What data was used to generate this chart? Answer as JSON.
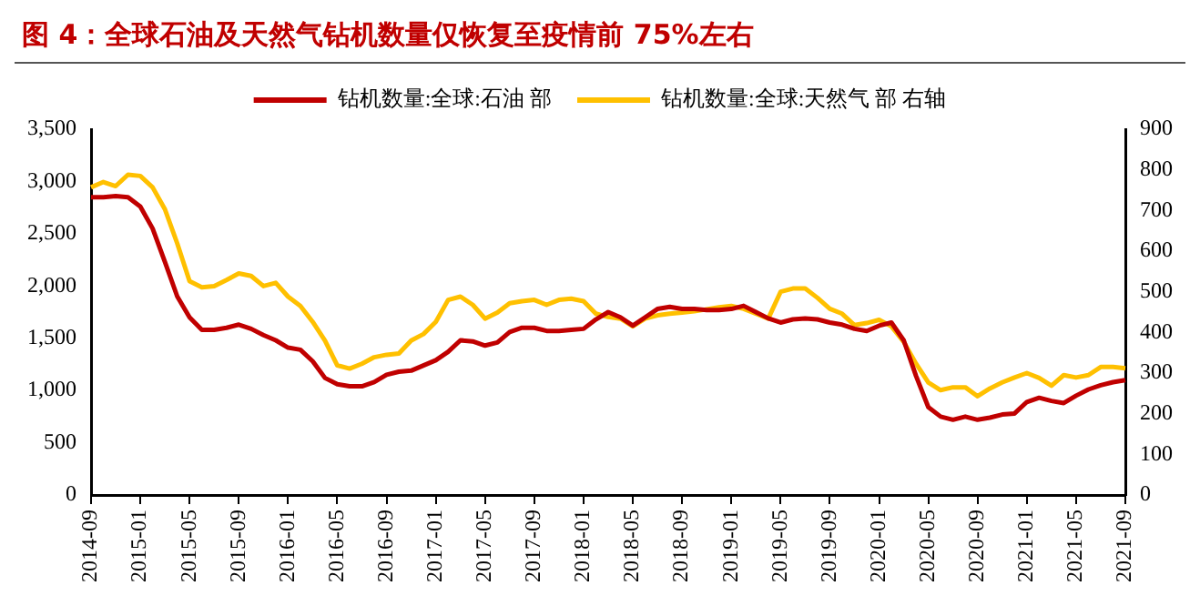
{
  "chart_data": {
    "type": "line",
    "title": "图 4：全球石油及天然气钻机数量仅恢复至疫情前 75%左右",
    "categories": [
      "2014-09",
      null,
      null,
      null,
      "2015-01",
      null,
      null,
      null,
      "2015-05",
      null,
      null,
      null,
      "2015-09",
      null,
      null,
      null,
      "2016-01",
      null,
      null,
      null,
      "2016-05",
      null,
      null,
      null,
      "2016-09",
      null,
      null,
      null,
      "2017-01",
      null,
      null,
      null,
      "2017-05",
      null,
      null,
      null,
      "2017-09",
      null,
      null,
      null,
      "2018-01",
      null,
      null,
      null,
      "2018-05",
      null,
      null,
      null,
      "2018-09",
      null,
      null,
      null,
      "2019-01",
      null,
      null,
      null,
      "2019-05",
      null,
      null,
      null,
      "2019-09",
      null,
      null,
      null,
      "2020-01",
      null,
      null,
      null,
      "2020-05",
      null,
      null,
      null,
      "2020-09",
      null,
      null,
      null,
      "2021-01",
      null,
      null,
      null,
      "2021-05",
      null,
      null,
      null,
      "2021-09"
    ],
    "series": [
      {
        "name": "钻机数量:全球:石油 部",
        "color": "#c00000",
        "values": [
          2850,
          2850,
          2860,
          2850,
          2760,
          2550,
          2230,
          1900,
          1700,
          1580,
          1580,
          1600,
          1630,
          1590,
          1530,
          1480,
          1410,
          1390,
          1280,
          1120,
          1060,
          1040,
          1040,
          1080,
          1150,
          1180,
          1190,
          1240,
          1290,
          1370,
          1480,
          1470,
          1430,
          1460,
          1560,
          1600,
          1600,
          1570,
          1570,
          1580,
          1590,
          1680,
          1750,
          1700,
          1620,
          1700,
          1780,
          1800,
          1780,
          1780,
          1770,
          1770,
          1780,
          1810,
          1750,
          1690,
          1650,
          1680,
          1690,
          1680,
          1650,
          1630,
          1590,
          1570,
          1620,
          1650,
          1480,
          1140,
          840,
          750,
          720,
          750,
          720,
          740,
          770,
          780,
          890,
          930,
          900,
          880,
          950,
          1010,
          1050,
          1080,
          1100
        ]
      },
      {
        "name": "钻机数量:全球:天然气 部 右轴",
        "color": "#ffc000",
        "axis": "y2",
        "values": [
          757,
          770,
          760,
          788,
          785,
          757,
          703,
          619,
          526,
          511,
          514,
          529,
          545,
          539,
          514,
          522,
          488,
          465,
          426,
          380,
          319,
          311,
          323,
          339,
          345,
          348,
          380,
          396,
          426,
          480,
          488,
          468,
          434,
          449,
          472,
          477,
          480,
          468,
          480,
          483,
          477,
          446,
          438,
          434,
          415,
          434,
          442,
          446,
          449,
          452,
          457,
          462,
          465,
          458,
          446,
          434,
          500,
          508,
          508,
          485,
          458,
          446,
          418,
          423,
          431,
          415,
          377,
          323,
          277,
          258,
          265,
          265,
          243,
          262,
          277,
          289,
          300,
          288,
          269,
          295,
          289,
          295,
          315,
          315,
          312
        ]
      }
    ],
    "ylim": [
      0,
      3500
    ],
    "yticks": [
      0,
      500,
      {
        "value": 1000,
        "label": "1,000"
      },
      {
        "value": 1500,
        "label": "1,500"
      },
      {
        "value": 2000,
        "label": "2,000"
      },
      {
        "value": 2500,
        "label": "2,500"
      },
      {
        "value": 3000,
        "label": "3,000"
      },
      {
        "value": 3500,
        "label": "3,500"
      }
    ],
    "y2lim": [
      0,
      900
    ],
    "y2ticks": [
      0,
      100,
      200,
      300,
      400,
      500,
      600,
      700,
      800,
      900
    ],
    "legend": "top",
    "grid": false,
    "marker": "none",
    "line_style": "solid"
  }
}
